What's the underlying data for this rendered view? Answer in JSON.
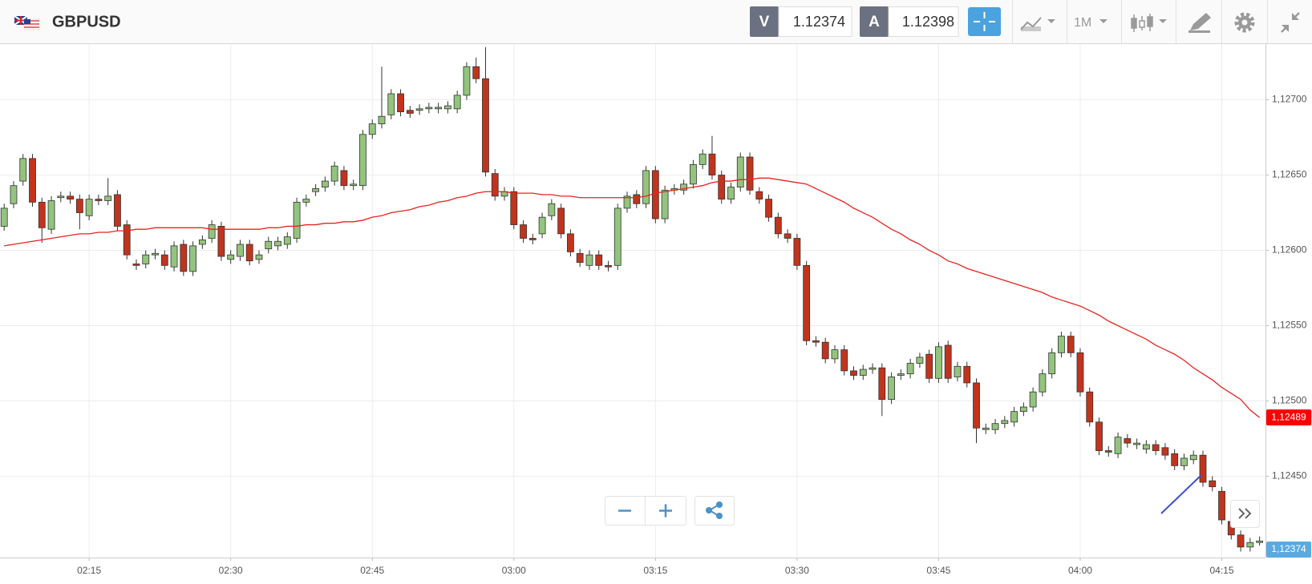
{
  "header": {
    "symbol": "GBPUSD",
    "bid_label": "V",
    "bid": "1.12374",
    "ask_label": "A",
    "ask": "1.12398",
    "timeframe": "1M"
  },
  "chart_data": {
    "type": "candlestick",
    "up_color": "#93c47d",
    "down_color": "#c0341d",
    "x": [
      "02:06",
      "02:07",
      "02:08",
      "02:09",
      "02:10",
      "02:11",
      "02:12",
      "02:13",
      "02:14",
      "02:15",
      "02:16",
      "02:17",
      "02:18",
      "02:19",
      "02:20",
      "02:21",
      "02:22",
      "02:23",
      "02:24",
      "02:25",
      "02:26",
      "02:27",
      "02:28",
      "02:29",
      "02:30",
      "02:31",
      "02:32",
      "02:33",
      "02:34",
      "02:35",
      "02:36",
      "02:37",
      "02:38",
      "02:39",
      "02:40",
      "02:41",
      "02:42",
      "02:43",
      "02:44",
      "02:45",
      "02:46",
      "02:47",
      "02:48",
      "02:49",
      "02:50",
      "02:51",
      "02:52",
      "02:53",
      "02:54",
      "02:55",
      "02:56",
      "02:57",
      "02:58",
      "02:59",
      "03:00",
      "03:01",
      "03:02",
      "03:03",
      "03:04",
      "03:05",
      "03:06",
      "03:07",
      "03:08",
      "03:09",
      "03:10",
      "03:11",
      "03:12",
      "03:13",
      "03:14",
      "03:15",
      "03:16",
      "03:17",
      "03:18",
      "03:19",
      "03:20",
      "03:21",
      "03:22",
      "03:23",
      "03:24",
      "03:25",
      "03:26",
      "03:27",
      "03:28",
      "03:29",
      "03:30",
      "03:31",
      "03:32",
      "03:33",
      "03:34",
      "03:35",
      "03:36",
      "03:37",
      "03:38",
      "03:39",
      "03:40",
      "03:41",
      "03:42",
      "03:43",
      "03:44",
      "03:45",
      "03:46",
      "03:47",
      "03:48",
      "03:49",
      "03:50",
      "03:51",
      "03:52",
      "03:53",
      "03:54",
      "03:55",
      "03:56",
      "03:57",
      "03:58",
      "03:59",
      "04:00",
      "04:01",
      "04:02",
      "04:03",
      "04:04",
      "04:05",
      "04:06",
      "04:07",
      "04:08",
      "04:09",
      "04:10",
      "04:11",
      "04:12",
      "04:13",
      "04:14",
      "04:15",
      "04:16",
      "04:17",
      "04:18",
      "04:19"
    ],
    "open": [
      1.12616,
      1.12631,
      1.12646,
      1.12661,
      1.12632,
      1.12614,
      1.12635,
      1.12636,
      1.12634,
      1.12623,
      1.12634,
      1.12633,
      1.12637,
      1.12617,
      1.12591,
      1.12591,
      1.12597,
      1.12597,
      1.12589,
      1.12604,
      1.12586,
      1.12604,
      1.12608,
      1.12616,
      1.12594,
      1.12596,
      1.12604,
      1.12594,
      1.12601,
      1.12603,
      1.12604,
      1.12608,
      1.12632,
      1.12639,
      1.12642,
      1.12646,
      1.12653,
      1.12643,
      1.12643,
      1.12677,
      1.12684,
      1.1269,
      1.12704,
      1.12693,
      1.12693,
      1.12694,
      1.12694,
      1.12694,
      1.12694,
      1.12703,
      1.12722,
      1.12714,
      1.12651,
      1.12636,
      1.12639,
      1.12617,
      1.12608,
      1.12611,
      1.12623,
      1.12628,
      1.12611,
      1.12598,
      1.1259,
      1.12597,
      1.1259,
      1.1259,
      1.12628,
      1.12637,
      1.12631,
      1.12653,
      1.12621,
      1.1264,
      1.1264,
      1.12644,
      1.12657,
      1.12664,
      1.1265,
      1.12634,
      1.12642,
      1.12662,
      1.12639,
      1.12634,
      1.12622,
      1.12611,
      1.12608,
      1.1259,
      1.1254,
      1.12539,
      1.12528,
      1.12534,
      1.1252,
      1.12517,
      1.12521,
      1.12522,
      1.12501,
      1.12517,
      1.12518,
      1.12525,
      1.12531,
      1.12515,
      1.12537,
      1.12516,
      1.12523,
      1.12512,
      1.12481,
      1.12481,
      1.12485,
      1.12486,
      1.12493,
      1.12496,
      1.12506,
      1.12518,
      1.12532,
      1.12543,
      1.12532,
      1.12506,
      1.12486,
      1.12467,
      1.12465,
      1.12475,
      1.12471,
      1.12468,
      1.12471,
      1.12469,
      1.12465,
      1.12457,
      1.12461,
      1.12464,
      1.12447,
      1.1244,
      1.1242,
      1.12411,
      1.12403,
      1.12406
    ],
    "high": [
      1.12631,
      1.12646,
      1.12664,
      1.12664,
      1.12635,
      1.12636,
      1.12639,
      1.12639,
      1.12637,
      1.12637,
      1.12637,
      1.12648,
      1.1264,
      1.1262,
      1.12594,
      1.126,
      1.12601,
      1.126,
      1.12606,
      1.12607,
      1.12606,
      1.1261,
      1.1262,
      1.12619,
      1.126,
      1.12607,
      1.12607,
      1.126,
      1.12609,
      1.12609,
      1.12612,
      1.12635,
      1.12637,
      1.12644,
      1.12649,
      1.12659,
      1.12656,
      1.12647,
      1.1268,
      1.12687,
      1.12722,
      1.12707,
      1.12707,
      1.12696,
      1.12697,
      1.12698,
      1.12698,
      1.12699,
      1.12706,
      1.12725,
      1.12728,
      1.12735,
      1.12654,
      1.12642,
      1.12642,
      1.1262,
      1.12611,
      1.12625,
      1.12634,
      1.12631,
      1.12614,
      1.12601,
      1.126,
      1.126,
      1.12593,
      1.12631,
      1.12639,
      1.1264,
      1.12656,
      1.12656,
      1.12643,
      1.12644,
      1.12647,
      1.1266,
      1.12667,
      1.12676,
      1.12653,
      1.12645,
      1.12665,
      1.12665,
      1.12642,
      1.12637,
      1.12625,
      1.12614,
      1.12611,
      1.12593,
      1.12543,
      1.12542,
      1.12537,
      1.12537,
      1.12523,
      1.12524,
      1.12525,
      1.12525,
      1.12519,
      1.12521,
      1.12528,
      1.12532,
      1.12534,
      1.12539,
      1.1254,
      1.12526,
      1.12526,
      1.12515,
      1.12485,
      1.12488,
      1.1249,
      1.12496,
      1.12499,
      1.12509,
      1.12521,
      1.12535,
      1.12546,
      1.12546,
      1.12535,
      1.12509,
      1.12489,
      1.1247,
      1.12479,
      1.12478,
      1.12475,
      1.12474,
      1.12474,
      1.12472,
      1.12468,
      1.12465,
      1.12467,
      1.12467,
      1.1245,
      1.12443,
      1.12423,
      1.12414,
      1.12409,
      1.1241
    ],
    "low": [
      1.12613,
      1.12628,
      1.12643,
      1.12629,
      1.12605,
      1.12611,
      1.12632,
      1.12631,
      1.12614,
      1.1262,
      1.1263,
      1.1263,
      1.12613,
      1.12594,
      1.12587,
      1.12588,
      1.12594,
      1.12587,
      1.12586,
      1.12583,
      1.12583,
      1.12601,
      1.12605,
      1.12593,
      1.12591,
      1.12593,
      1.1259,
      1.12591,
      1.12598,
      1.126,
      1.12601,
      1.12605,
      1.12629,
      1.12636,
      1.12639,
      1.12643,
      1.1264,
      1.1264,
      1.1264,
      1.12674,
      1.12681,
      1.12687,
      1.12689,
      1.12688,
      1.1269,
      1.12691,
      1.12691,
      1.12691,
      1.12691,
      1.127,
      1.12711,
      1.12649,
      1.12633,
      1.12633,
      1.12614,
      1.12605,
      1.12604,
      1.12608,
      1.1262,
      1.12608,
      1.12596,
      1.12589,
      1.12587,
      1.12587,
      1.12586,
      1.12587,
      1.12625,
      1.12628,
      1.12628,
      1.12618,
      1.12618,
      1.12637,
      1.12637,
      1.12641,
      1.12654,
      1.12647,
      1.12631,
      1.12631,
      1.12639,
      1.12637,
      1.12631,
      1.12619,
      1.12608,
      1.12605,
      1.12587,
      1.12537,
      1.12536,
      1.12525,
      1.12525,
      1.12517,
      1.12514,
      1.12514,
      1.12518,
      1.1249,
      1.12498,
      1.12514,
      1.12515,
      1.12522,
      1.12512,
      1.12512,
      1.12512,
      1.12513,
      1.12509,
      1.12472,
      1.12478,
      1.12478,
      1.12482,
      1.12483,
      1.1249,
      1.12493,
      1.12503,
      1.12515,
      1.12529,
      1.12529,
      1.12503,
      1.12483,
      1.12464,
      1.12463,
      1.12462,
      1.12469,
      1.12468,
      1.12465,
      1.12464,
      1.12461,
      1.12454,
      1.12454,
      1.12458,
      1.12443,
      1.1244,
      1.12418,
      1.12408,
      1.124,
      1.124,
      1.12404
    ],
    "close": [
      1.12628,
      1.12643,
      1.12661,
      1.12632,
      1.12615,
      1.12633,
      1.12636,
      1.12634,
      1.12625,
      1.12634,
      1.12633,
      1.12636,
      1.12616,
      1.12597,
      1.1259,
      1.12597,
      1.12598,
      1.1259,
      1.12603,
      1.12586,
      1.12603,
      1.12607,
      1.12617,
      1.12596,
      1.12597,
      1.12604,
      1.12593,
      1.12597,
      1.12606,
      1.12606,
      1.12609,
      1.12632,
      1.12634,
      1.12641,
      1.12646,
      1.12656,
      1.12643,
      1.12644,
      1.12677,
      1.12684,
      1.12689,
      1.12704,
      1.12692,
      1.12691,
      1.12694,
      1.12695,
      1.12695,
      1.12696,
      1.12703,
      1.12722,
      1.12714,
      1.12652,
      1.12636,
      1.12639,
      1.12617,
      1.12608,
      1.12607,
      1.12622,
      1.12631,
      1.12611,
      1.12599,
      1.12592,
      1.12597,
      1.1259,
      1.12589,
      1.12628,
      1.12636,
      1.12631,
      1.12653,
      1.12621,
      1.1264,
      1.12641,
      1.12644,
      1.12657,
      1.12664,
      1.1265,
      1.12634,
      1.12642,
      1.12662,
      1.1264,
      1.12634,
      1.12622,
      1.12611,
      1.12608,
      1.1259,
      1.1254,
      1.12539,
      1.12528,
      1.12534,
      1.1252,
      1.12517,
      1.12521,
      1.12522,
      1.12501,
      1.12516,
      1.12518,
      1.12525,
      1.12529,
      1.12515,
      1.12536,
      1.12515,
      1.12523,
      1.12512,
      1.12482,
      1.12482,
      1.12485,
      1.12487,
      1.12493,
      1.12496,
      1.12506,
      1.12518,
      1.12532,
      1.12543,
      1.12532,
      1.12506,
      1.12486,
      1.12467,
      1.12466,
      1.12476,
      1.12472,
      1.12472,
      1.12471,
      1.12467,
      1.12464,
      1.12457,
      1.12462,
      1.12464,
      1.12446,
      1.12443,
      1.12421,
      1.12411,
      1.12403,
      1.12406,
      1.12407
    ],
    "ma": {
      "color": "#e8231f",
      "values": [
        1.12603,
        1.12604,
        1.12605,
        1.12606,
        1.12607,
        1.12608,
        1.12609,
        1.1261,
        1.12611,
        1.12611,
        1.12612,
        1.12612,
        1.12613,
        1.12613,
        1.12614,
        1.12614,
        1.12615,
        1.12615,
        1.12615,
        1.12615,
        1.12615,
        1.12615,
        1.12614,
        1.12614,
        1.12614,
        1.12614,
        1.12614,
        1.12614,
        1.12615,
        1.12615,
        1.12616,
        1.12616,
        1.12617,
        1.12617,
        1.12618,
        1.12618,
        1.12619,
        1.12619,
        1.1262,
        1.12622,
        1.12623,
        1.12625,
        1.12626,
        1.12627,
        1.12629,
        1.1263,
        1.12632,
        1.12633,
        1.12635,
        1.12636,
        1.12638,
        1.12639,
        1.12639,
        1.12639,
        1.12638,
        1.12638,
        1.12638,
        1.12637,
        1.12637,
        1.12636,
        1.12636,
        1.12635,
        1.12635,
        1.12635,
        1.12635,
        1.12635,
        1.12635,
        1.12635,
        1.12636,
        1.12638,
        1.12639,
        1.1264,
        1.12641,
        1.12642,
        1.12643,
        1.12645,
        1.12646,
        1.12646,
        1.12647,
        1.12647,
        1.12648,
        1.12648,
        1.12647,
        1.12646,
        1.12645,
        1.12644,
        1.12641,
        1.12638,
        1.12635,
        1.12632,
        1.12628,
        1.12625,
        1.12622,
        1.12618,
        1.12614,
        1.12611,
        1.12607,
        1.12604,
        1.126,
        1.12597,
        1.12593,
        1.12591,
        1.12588,
        1.12586,
        1.12584,
        1.12582,
        1.1258,
        1.12578,
        1.12576,
        1.12574,
        1.12572,
        1.12569,
        1.12567,
        1.12565,
        1.12563,
        1.1256,
        1.12557,
        1.12553,
        1.1255,
        1.12547,
        1.12544,
        1.12541,
        1.12537,
        1.12534,
        1.12531,
        1.12527,
        1.12522,
        1.12518,
        1.12514,
        1.12509,
        1.12505,
        1.12501,
        1.12494,
        1.12489
      ]
    },
    "price_tags": [
      {
        "value": 1.12489,
        "label": "1,12489",
        "color": "#ff0000"
      },
      {
        "value": 1.12374,
        "label": "1,12374",
        "color": "#5aaae0"
      }
    ],
    "ylim": [
      1.12396,
      1.12737
    ],
    "yticks": [
      {
        "value": 1.1245,
        "label": "1,12450"
      },
      {
        "value": 1.125,
        "label": "1,12500"
      },
      {
        "value": 1.1255,
        "label": "1,12550"
      },
      {
        "value": 1.126,
        "label": "1,12600"
      },
      {
        "value": 1.1265,
        "label": "1,12650"
      },
      {
        "value": 1.127,
        "label": "1,12700"
      }
    ],
    "xticks": [
      "02:15",
      "02:30",
      "02:45",
      "03:00",
      "03:15",
      "03:30",
      "03:45",
      "04:00",
      "04:15"
    ],
    "grid": true
  }
}
